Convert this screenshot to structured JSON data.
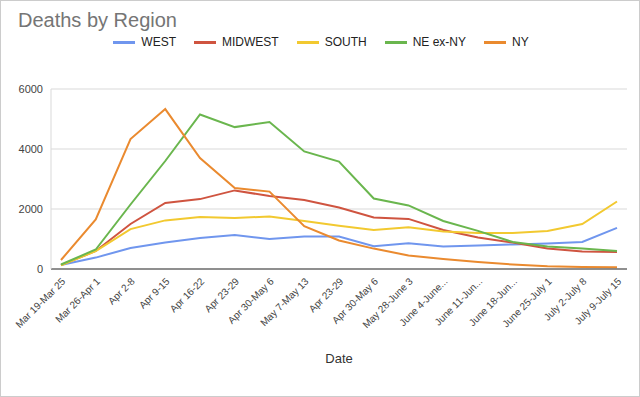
{
  "chart_data": {
    "type": "line",
    "title": "Deaths by Region",
    "x_label": "Date",
    "categories": [
      "Mar 19-Mar 25",
      "Mar 26-Apr 1",
      "Apr 2-8",
      "Apr 9-15",
      "Apr 16-22",
      "Apr 23-29",
      "Apr 30-May 6",
      "May 7-May 13",
      "Apr 23-29",
      "Apr 30-May 6",
      "May 28-June 3",
      "June 4-June...",
      "June 11-Jun...",
      "June 18-Jun...",
      "June 25-July 1",
      "July 2-July 8",
      "July 9-July 15"
    ],
    "series": [
      {
        "name": "WEST",
        "color": "#7096ee",
        "values": [
          130,
          380,
          700,
          880,
          1030,
          1130,
          1000,
          1080,
          1080,
          760,
          860,
          750,
          780,
          820,
          850,
          900,
          1370
        ]
      },
      {
        "name": "MIDWEST",
        "color": "#cf5440",
        "values": [
          130,
          600,
          1500,
          2200,
          2330,
          2620,
          2430,
          2300,
          2050,
          1720,
          1670,
          1300,
          1050,
          880,
          680,
          580,
          570
        ]
      },
      {
        "name": "SOUTH",
        "color": "#f2c930",
        "values": [
          120,
          600,
          1330,
          1620,
          1730,
          1700,
          1750,
          1600,
          1440,
          1300,
          1390,
          1250,
          1200,
          1200,
          1270,
          1500,
          2250
        ]
      },
      {
        "name": "NE ex-NY",
        "color": "#6ab64e",
        "values": [
          150,
          650,
          2150,
          3600,
          5150,
          4730,
          4900,
          3920,
          3580,
          2350,
          2120,
          1600,
          1270,
          900,
          750,
          680,
          600
        ]
      },
      {
        "name": "NY",
        "color": "#ea8a2f",
        "values": [
          300,
          1650,
          4330,
          5330,
          3700,
          2700,
          2580,
          1430,
          950,
          680,
          450,
          330,
          230,
          150,
          90,
          70,
          60
        ]
      }
    ],
    "ylim": [
      0,
      6000
    ],
    "yticks": [
      0,
      2000,
      4000,
      6000
    ],
    "grid": true,
    "legend": "top"
  }
}
